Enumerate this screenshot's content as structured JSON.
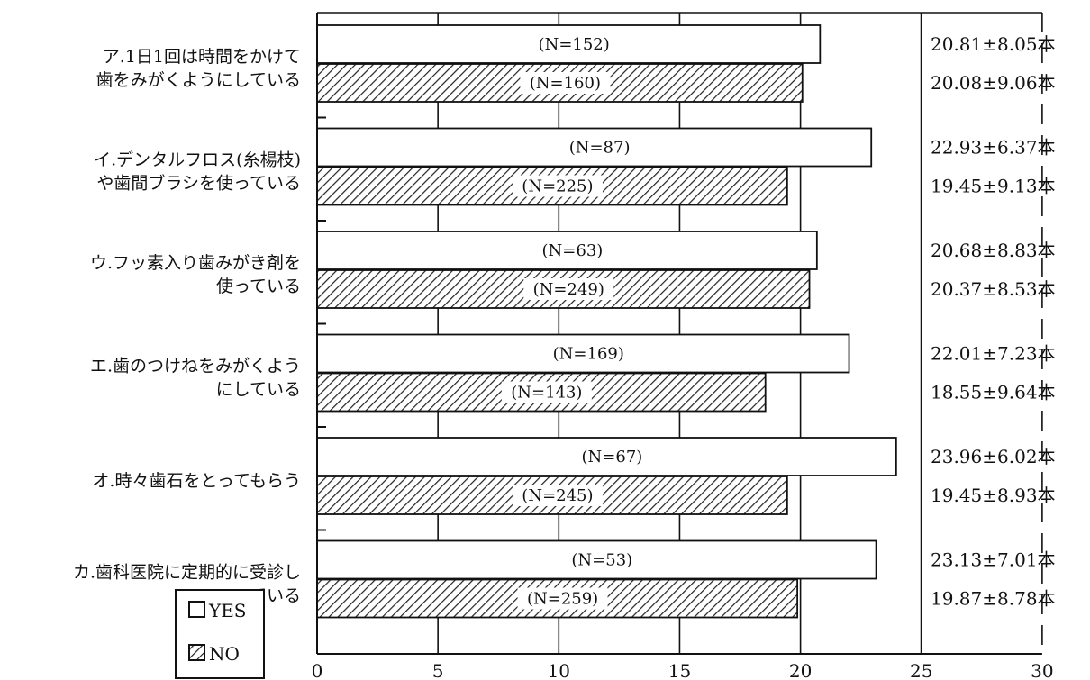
{
  "chart_data": {
    "type": "bar",
    "orientation": "horizontal",
    "categories": [
      [
        "ア.1日1回は時間をかけて",
        "歯をみがくようにしている"
      ],
      [
        "イ.デンタルフロス(糸楊枝)",
        "や歯間ブラシを使っている"
      ],
      [
        "ウ.フッ素入り歯みがき剤を",
        "使っている"
      ],
      [
        "エ.歯のつけねをみがくよう",
        "にしている"
      ],
      [
        "オ.時々歯石をとってもらう"
      ],
      [
        "カ.歯科医院に定期的に受診し",
        "ている"
      ]
    ],
    "series": [
      {
        "name": "YES",
        "color": "#ffffff",
        "values": [
          20.81,
          22.93,
          20.68,
          22.01,
          23.96,
          23.13
        ],
        "n_labels": [
          "(N=152)",
          "(N=87)",
          "(N=63)",
          "(N=169)",
          "(N=67)",
          "(N=53)"
        ],
        "stat_labels": [
          "20.81±8.05本",
          "22.93±6.37本",
          "20.68±8.83本",
          "22.01±7.23本",
          "23.96±6.02本",
          "23.13±7.01本"
        ]
      },
      {
        "name": "NO",
        "color": "hatched",
        "values": [
          20.08,
          19.45,
          20.37,
          18.55,
          19.45,
          19.87
        ],
        "n_labels": [
          "(N=160)",
          "(N=225)",
          "(N=249)",
          "(N=143)",
          "(N=245)",
          "(N=259)"
        ],
        "stat_labels": [
          "20.08±9.06本",
          "19.45±9.13本",
          "20.37±8.53本",
          "18.55±9.64本",
          "19.45±8.93本",
          "19.87±8.78本"
        ]
      }
    ],
    "xlim": [
      0,
      30
    ],
    "xticks": [
      0,
      5,
      10,
      15,
      20,
      25,
      30
    ],
    "grid": true,
    "legend_position": "bottom-left",
    "title": "",
    "xlabel": "",
    "ylabel": ""
  }
}
